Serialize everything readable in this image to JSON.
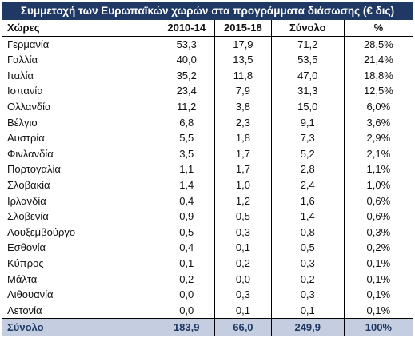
{
  "title": "Συμμετοχή των Ευρωπαϊκών χωρών στα προγράμματα διάσωσης (€ δις)",
  "headers": [
    "Χώρες",
    "2010-14",
    "2015-18",
    "Σύνολο",
    "%"
  ],
  "rows": [
    [
      "Γερμανία",
      "53,3",
      "17,9",
      "71,2",
      "28,5%"
    ],
    [
      "Γαλλία",
      "40,0",
      "13,5",
      "53,5",
      "21,4%"
    ],
    [
      "Ιταλία",
      "35,2",
      "11,8",
      "47,0",
      "18,8%"
    ],
    [
      "Ισπανία",
      "23,4",
      "7,9",
      "31,3",
      "12,5%"
    ],
    [
      "Ολλανδία",
      "11,2",
      "3,8",
      "15,0",
      "6,0%"
    ],
    [
      "Βέλγιο",
      "6,8",
      "2,3",
      "9,1",
      "3,6%"
    ],
    [
      "Αυστρία",
      "5,5",
      "1,8",
      "7,3",
      "2,9%"
    ],
    [
      "Φινλανδία",
      "3,5",
      "1,7",
      "5,2",
      "2,1%"
    ],
    [
      "Πορτογαλία",
      "1,1",
      "1,7",
      "2,8",
      "1,1%"
    ],
    [
      "Σλοβακία",
      "1,4",
      "1,0",
      "2,4",
      "1,0%"
    ],
    [
      "Ιρλανδία",
      "0,4",
      "1,2",
      "1,6",
      "0,6%"
    ],
    [
      "Σλοβενία",
      "0,9",
      "0,5",
      "1,4",
      "0,6%"
    ],
    [
      "Λουξεμβούργο",
      "0,5",
      "0,3",
      "0,8",
      "0,3%"
    ],
    [
      "Εσθονία",
      "0,4",
      "0,1",
      "0,5",
      "0,2%"
    ],
    [
      "Κύπρος",
      "0,1",
      "0,2",
      "0,3",
      "0,1%"
    ],
    [
      "Μάλτα",
      "0,2",
      "0,0",
      "0,2",
      "0,1%"
    ],
    [
      "Λιθουανία",
      "0,0",
      "0,3",
      "0,3",
      "0,1%"
    ],
    [
      "Λετονία",
      "0,0",
      "0,1",
      "0,1",
      "0,1%"
    ]
  ],
  "total": [
    "Σύνολο",
    "183,9",
    "66,0",
    "249,9",
    "100%"
  ],
  "colors": {
    "title_bg": "#1f3864",
    "total_bg": "#c5cee0"
  }
}
